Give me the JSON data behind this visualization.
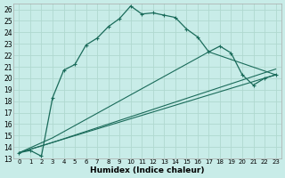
{
  "xlabel": "Humidex (Indice chaleur)",
  "bg_color": "#c8ece8",
  "grid_color": "#b0d8d0",
  "line_color": "#1a6b5a",
  "xlim": [
    -0.5,
    23.5
  ],
  "ylim": [
    13,
    26.5
  ],
  "yticks": [
    13,
    14,
    15,
    16,
    17,
    18,
    19,
    20,
    21,
    22,
    23,
    24,
    25,
    26
  ],
  "xticks": [
    0,
    1,
    2,
    3,
    4,
    5,
    6,
    7,
    8,
    9,
    10,
    11,
    12,
    13,
    14,
    15,
    16,
    17,
    18,
    19,
    20,
    21,
    22,
    23
  ],
  "xtick_labels": [
    "0",
    "1",
    "2",
    "3",
    "4",
    "5",
    "6",
    "7",
    "8",
    "9",
    "10",
    "11",
    "12",
    "13",
    "14",
    "15",
    "16",
    "17",
    "18",
    "19",
    "20",
    "21",
    "22",
    "23"
  ],
  "main_line_x": [
    0,
    1,
    2,
    3,
    4,
    5,
    6,
    7,
    8,
    9,
    10,
    11,
    12,
    13,
    14,
    15,
    16,
    17,
    18,
    19,
    20,
    21,
    22,
    23
  ],
  "main_line_y": [
    13.5,
    13.7,
    13.2,
    18.3,
    20.7,
    21.2,
    22.9,
    23.5,
    24.5,
    25.2,
    26.3,
    25.6,
    25.7,
    25.5,
    25.3,
    24.3,
    23.6,
    22.3,
    22.8,
    22.2,
    20.3,
    19.4,
    20.0,
    20.3
  ],
  "line2_x": [
    0,
    3,
    23
  ],
  "line2_y": [
    13.5,
    14.4,
    20.3
  ],
  "line3_x": [
    0,
    3,
    23
  ],
  "line3_y": [
    13.5,
    14.4,
    20.8
  ],
  "line4_x": [
    0,
    3,
    17,
    23
  ],
  "line4_y": [
    13.5,
    14.8,
    22.3,
    20.3
  ]
}
